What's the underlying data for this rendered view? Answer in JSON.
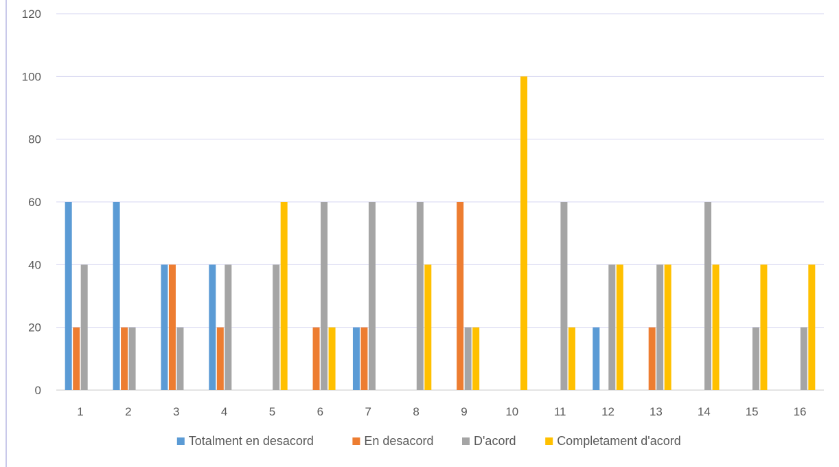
{
  "chart_data": {
    "type": "bar",
    "title": "",
    "xlabel": "",
    "ylabel": "",
    "ylim": [
      0,
      120
    ],
    "yticks": [
      0,
      20,
      40,
      60,
      80,
      100,
      120
    ],
    "grid": true,
    "legend_position": "bottom",
    "categories": [
      "1",
      "2",
      "3",
      "4",
      "5",
      "6",
      "7",
      "8",
      "9",
      "10",
      "11",
      "12",
      "13",
      "14",
      "15",
      "16"
    ],
    "series": [
      {
        "name": "Totalment en desacord",
        "color": "#5B9BD5",
        "values": [
          60,
          60,
          40,
          40,
          0,
          0,
          20,
          0,
          0,
          0,
          0,
          20,
          0,
          0,
          0,
          0
        ]
      },
      {
        "name": "En desacord",
        "color": "#ED7D31",
        "values": [
          20,
          20,
          40,
          20,
          0,
          20,
          20,
          0,
          60,
          0,
          0,
          0,
          20,
          0,
          0,
          0
        ]
      },
      {
        "name": "D'acord",
        "color": "#A5A5A5",
        "values": [
          40,
          20,
          20,
          40,
          40,
          60,
          60,
          60,
          20,
          0,
          60,
          40,
          40,
          60,
          20,
          20
        ]
      },
      {
        "name": "Completament d'acord",
        "color": "#FFC000",
        "values": [
          0,
          0,
          0,
          0,
          60,
          20,
          0,
          40,
          20,
          100,
          20,
          40,
          40,
          40,
          40,
          40
        ]
      }
    ]
  }
}
